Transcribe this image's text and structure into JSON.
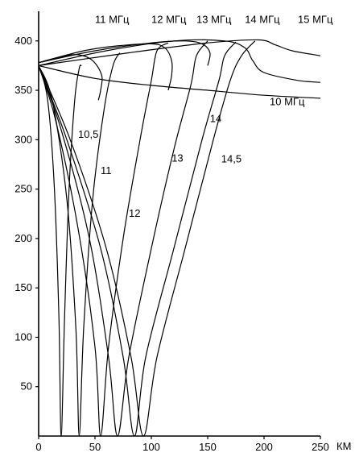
{
  "chart_data": {
    "type": "line",
    "title": "",
    "xlabel": "КМ",
    "ylabel": "",
    "xlim": [
      0,
      250
    ],
    "ylim": [
      0,
      430
    ],
    "x_ticks": [
      "0",
      "50",
      "100",
      "150",
      "200",
      "250"
    ],
    "y_ticks": [
      "50",
      "100",
      "150",
      "200",
      "250",
      "300",
      "350",
      "400"
    ],
    "grid": false,
    "series": [
      {
        "name": "10,5",
        "label_pos": [
          35,
          302
        ],
        "points": [
          [
            0,
            375
          ],
          [
            8,
            340
          ],
          [
            14,
            250
          ],
          [
            18,
            120
          ],
          [
            20,
            0
          ],
          [
            23,
            120
          ],
          [
            27,
            250
          ],
          [
            32,
            340
          ],
          [
            36,
            372
          ],
          [
            38,
            375
          ]
        ]
      },
      {
        "name": "11",
        "label_pos": [
          55,
          265
        ],
        "points": [
          [
            0,
            375
          ],
          [
            12,
            340
          ],
          [
            25,
            240
          ],
          [
            33,
            110
          ],
          [
            36,
            0
          ],
          [
            40,
            110
          ],
          [
            48,
            240
          ],
          [
            58,
            330
          ],
          [
            66,
            375
          ],
          [
            72,
            388
          ]
        ]
      },
      {
        "name": "12",
        "label_pos": [
          80,
          222
        ],
        "points": [
          [
            0,
            375
          ],
          [
            15,
            320
          ],
          [
            35,
            210
          ],
          [
            50,
            90
          ],
          [
            55,
            0
          ],
          [
            62,
            90
          ],
          [
            75,
            200
          ],
          [
            90,
            300
          ],
          [
            100,
            360
          ],
          [
            105,
            390
          ],
          [
            115,
            398
          ]
        ]
      },
      {
        "name": "13",
        "label_pos": [
          118,
          278
        ],
        "points": [
          [
            0,
            375
          ],
          [
            20,
            310
          ],
          [
            45,
            200
          ],
          [
            62,
            80
          ],
          [
            70,
            0
          ],
          [
            80,
            80
          ],
          [
            100,
            190
          ],
          [
            120,
            290
          ],
          [
            135,
            355
          ],
          [
            140,
            385
          ],
          [
            150,
            400
          ]
        ]
      },
      {
        "name": "14",
        "label_pos": [
          152,
          318
        ],
        "points": [
          [
            0,
            375
          ],
          [
            25,
            300
          ],
          [
            55,
            190
          ],
          [
            75,
            80
          ],
          [
            85,
            0
          ],
          [
            95,
            80
          ],
          [
            120,
            190
          ],
          [
            145,
            300
          ],
          [
            160,
            360
          ],
          [
            165,
            385
          ],
          [
            175,
            399
          ]
        ]
      },
      {
        "name": "14,5",
        "label_pos": [
          162,
          277
        ],
        "points": [
          [
            0,
            375
          ],
          [
            28,
            300
          ],
          [
            60,
            190
          ],
          [
            82,
            80
          ],
          [
            93,
            0
          ],
          [
            105,
            80
          ],
          [
            130,
            190
          ],
          [
            155,
            300
          ],
          [
            170,
            360
          ],
          [
            180,
            385
          ],
          [
            192,
            400
          ]
        ]
      },
      {
        "name": "10 МГц",
        "label_pos": [
          205,
          335
        ],
        "points": [
          [
            0,
            375
          ],
          [
            50,
            362
          ],
          [
            100,
            355
          ],
          [
            150,
            350
          ],
          [
            200,
            345
          ],
          [
            250,
            342
          ]
        ]
      },
      {
        "name": "11 МГц",
        "label_pos": [
          50,
          418
        ],
        "points": [
          [
            0,
            378
          ],
          [
            20,
            384
          ],
          [
            35,
            386
          ],
          [
            48,
            380
          ],
          [
            56,
            365
          ],
          [
            55,
            350
          ],
          [
            53,
            340
          ]
        ]
      },
      {
        "name": "12 МГц",
        "label_pos": [
          100,
          418
        ],
        "points": [
          [
            0,
            378
          ],
          [
            40,
            390
          ],
          [
            70,
            395
          ],
          [
            100,
            397
          ],
          [
            112,
            393
          ],
          [
            118,
            380
          ],
          [
            118,
            365
          ],
          [
            115,
            350
          ]
        ]
      },
      {
        "name": "13 МГц",
        "label_pos": [
          140,
          418
        ],
        "points": [
          [
            0,
            378
          ],
          [
            50,
            390
          ],
          [
            100,
            398
          ],
          [
            130,
            400
          ],
          [
            145,
            397
          ],
          [
            152,
            388
          ],
          [
            150,
            375
          ]
        ]
      },
      {
        "name": "14 МГц",
        "label_pos": [
          183,
          418
        ],
        "points": [
          [
            0,
            375
          ],
          [
            60,
            390
          ],
          [
            120,
            400
          ],
          [
            165,
            400
          ],
          [
            183,
            393
          ],
          [
            190,
            380
          ],
          [
            200,
            368
          ],
          [
            230,
            360
          ],
          [
            250,
            358
          ]
        ]
      },
      {
        "name": "15 МГц",
        "label_pos": [
          230,
          418
        ],
        "points": [
          [
            0,
            375
          ],
          [
            80,
            388
          ],
          [
            150,
            398
          ],
          [
            195,
            401
          ],
          [
            210,
            396
          ],
          [
            225,
            390
          ],
          [
            250,
            385
          ]
        ]
      }
    ]
  }
}
